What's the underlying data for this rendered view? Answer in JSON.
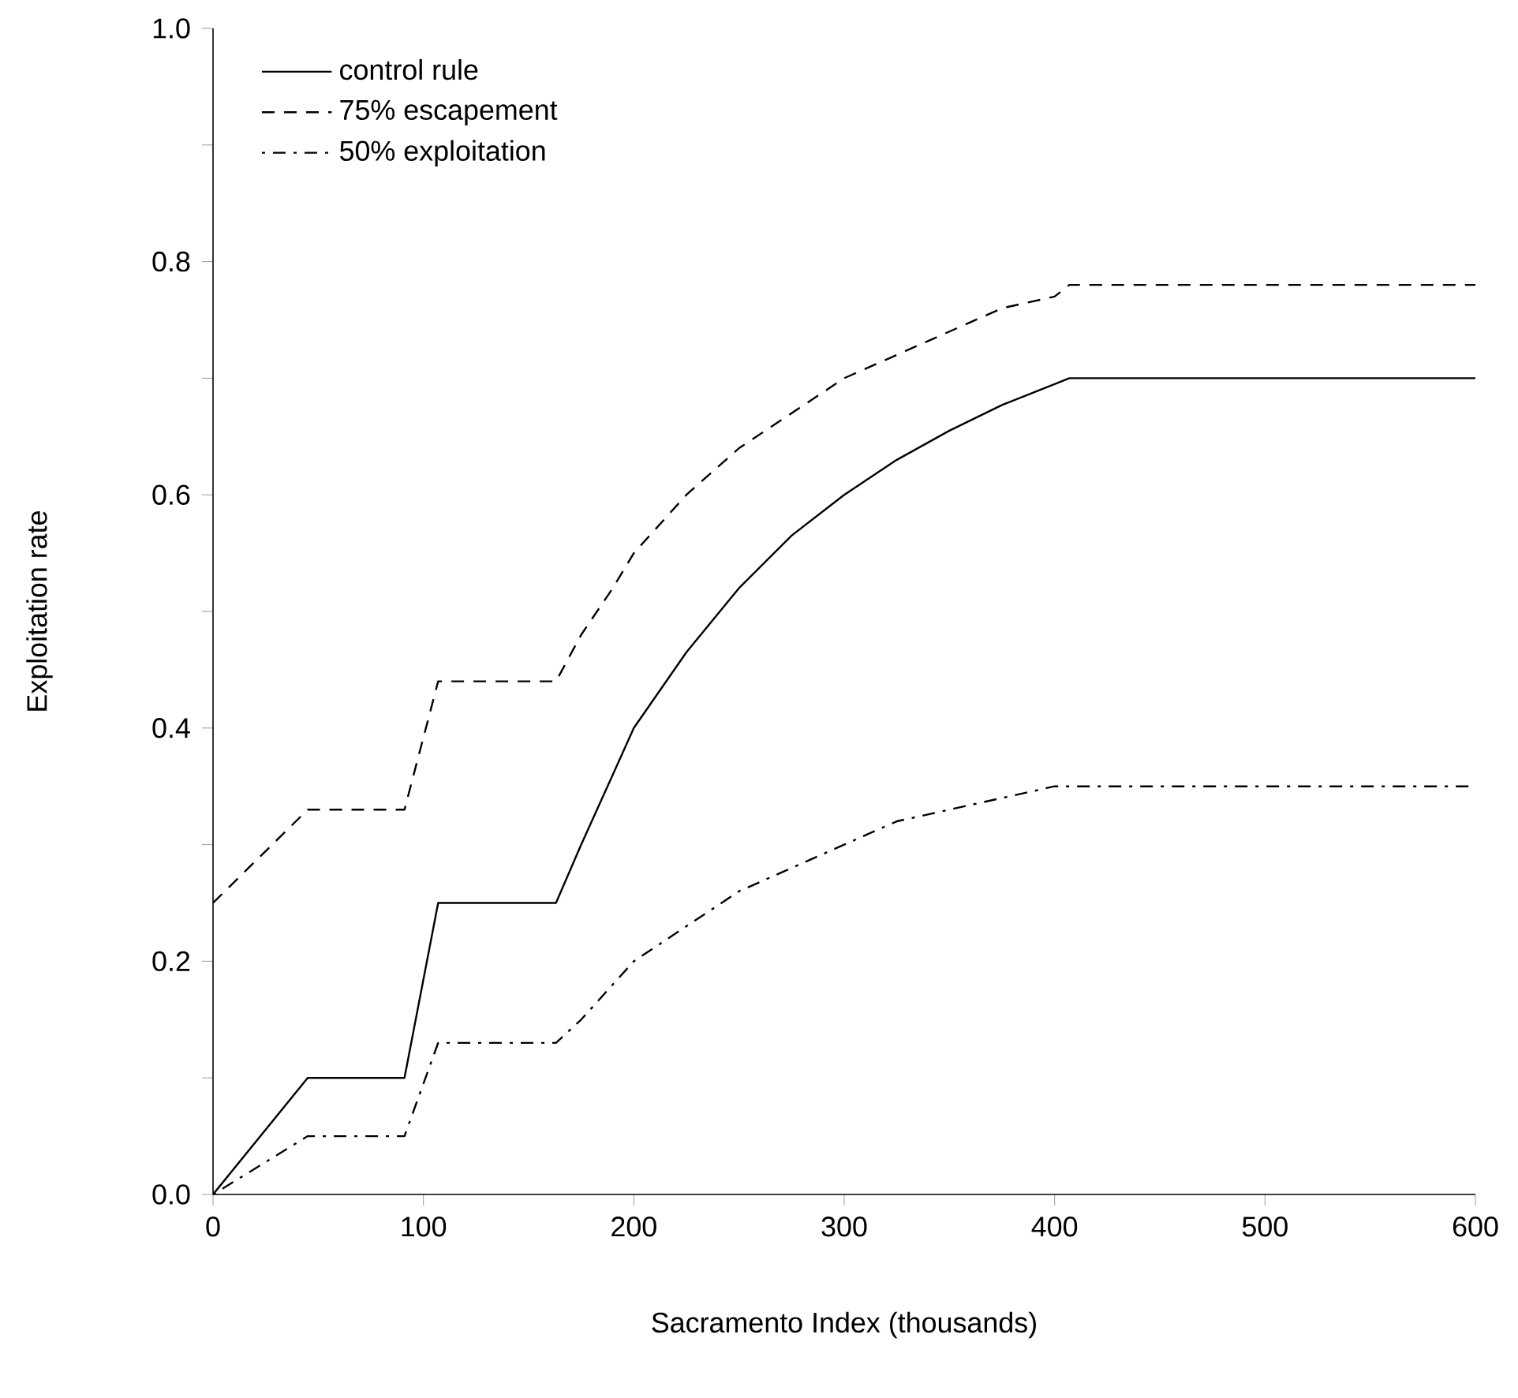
{
  "chart_data": {
    "type": "line",
    "xlabel": "Sacramento Index (thousands)",
    "ylabel": "Exploitation rate",
    "xlim": [
      0,
      600
    ],
    "ylim": [
      0,
      1.0
    ],
    "xticks": [
      0,
      100,
      200,
      300,
      400,
      500,
      600
    ],
    "yticks": [
      {
        "value": 0,
        "label": "0.0"
      },
      {
        "value": 0.1,
        "label": null
      },
      {
        "value": 0.2,
        "label": "0.2"
      },
      {
        "value": 0.3,
        "label": null
      },
      {
        "value": 0.4,
        "label": "0.4"
      },
      {
        "value": 0.5,
        "label": null
      },
      {
        "value": 0.6,
        "label": "0.6"
      },
      {
        "value": 0.7,
        "label": null
      },
      {
        "value": 0.8,
        "label": "0.8"
      },
      {
        "value": 0.9,
        "label": null
      },
      {
        "value": 1.0,
        "label": "1.0"
      }
    ],
    "x": [
      0,
      45,
      91,
      107,
      163,
      175,
      190,
      200,
      225,
      250,
      275,
      300,
      325,
      350,
      375,
      400,
      407,
      600
    ],
    "legend": "top left",
    "series": [
      {
        "name": "control rule",
        "color": "#000000",
        "line_style": "solid",
        "values": [
          0,
          0.1,
          0.1,
          0.25,
          0.25,
          0.3,
          0.36,
          0.4,
          0.465,
          0.52,
          0.565,
          0.6,
          0.63,
          0.655,
          0.677,
          0.695,
          0.7,
          0.7
        ]
      },
      {
        "name": "75% escapement",
        "color": "#000000",
        "line_style": "dashed",
        "values": [
          0.25,
          0.33,
          0.33,
          0.44,
          0.44,
          0.48,
          0.52,
          0.55,
          0.6,
          0.64,
          0.67,
          0.7,
          0.72,
          0.74,
          0.76,
          0.77,
          0.78,
          0.78
        ]
      },
      {
        "name": "50% exploitation",
        "color": "#000000",
        "line_style": "dashdot",
        "values": [
          0,
          0.05,
          0.05,
          0.13,
          0.13,
          0.15,
          0.18,
          0.2,
          0.23,
          0.26,
          0.28,
          0.3,
          0.32,
          0.33,
          0.34,
          0.35,
          0.35,
          0.35
        ]
      }
    ]
  }
}
